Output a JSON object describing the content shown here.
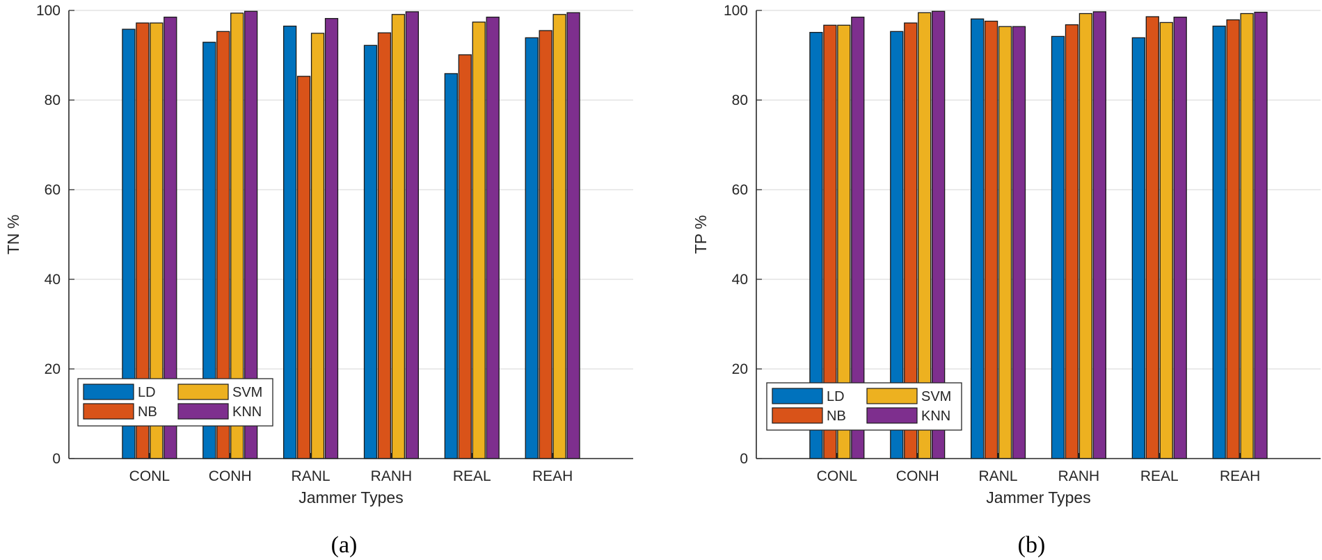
{
  "chart_data": [
    {
      "type": "bar",
      "caption": "(a)",
      "xlabel": "Jammer Types",
      "ylabel": "TN %",
      "ylim": [
        0,
        100
      ],
      "yticks": [
        0,
        20,
        40,
        60,
        80,
        100
      ],
      "grid": true,
      "legend_position": "bottom-left",
      "categories": [
        "CONL",
        "CONH",
        "RANL",
        "RANH",
        "REAL",
        "REAH"
      ],
      "series": [
        {
          "name": "LD",
          "color": "#0072BD",
          "values": [
            95.8,
            92.9,
            96.5,
            92.2,
            85.9,
            93.9
          ]
        },
        {
          "name": "NB",
          "color": "#D95319",
          "values": [
            97.2,
            95.3,
            85.3,
            95.0,
            90.1,
            95.5
          ]
        },
        {
          "name": "SVM",
          "color": "#EDB120",
          "values": [
            97.2,
            99.4,
            94.9,
            99.1,
            97.4,
            99.1
          ]
        },
        {
          "name": "KNN",
          "color": "#7E2F8E",
          "values": [
            98.5,
            99.8,
            98.2,
            99.7,
            98.5,
            99.5
          ]
        }
      ]
    },
    {
      "type": "bar",
      "caption": "(b)",
      "xlabel": "Jammer Types",
      "ylabel": "TP %",
      "ylim": [
        0,
        100
      ],
      "yticks": [
        0,
        20,
        40,
        60,
        80,
        100
      ],
      "grid": true,
      "legend_position": "bottom-left",
      "categories": [
        "CONL",
        "CONH",
        "RANL",
        "RANH",
        "REAL",
        "REAH"
      ],
      "series": [
        {
          "name": "LD",
          "color": "#0072BD",
          "values": [
            95.1,
            95.3,
            98.1,
            94.2,
            93.9,
            96.5
          ]
        },
        {
          "name": "NB",
          "color": "#D95319",
          "values": [
            96.7,
            97.2,
            97.6,
            96.8,
            98.6,
            97.9
          ]
        },
        {
          "name": "SVM",
          "color": "#EDB120",
          "values": [
            96.7,
            99.5,
            96.4,
            99.3,
            97.3,
            99.3
          ]
        },
        {
          "name": "KNN",
          "color": "#7E2F8E",
          "values": [
            98.5,
            99.8,
            96.4,
            99.7,
            98.5,
            99.6
          ]
        }
      ]
    }
  ]
}
